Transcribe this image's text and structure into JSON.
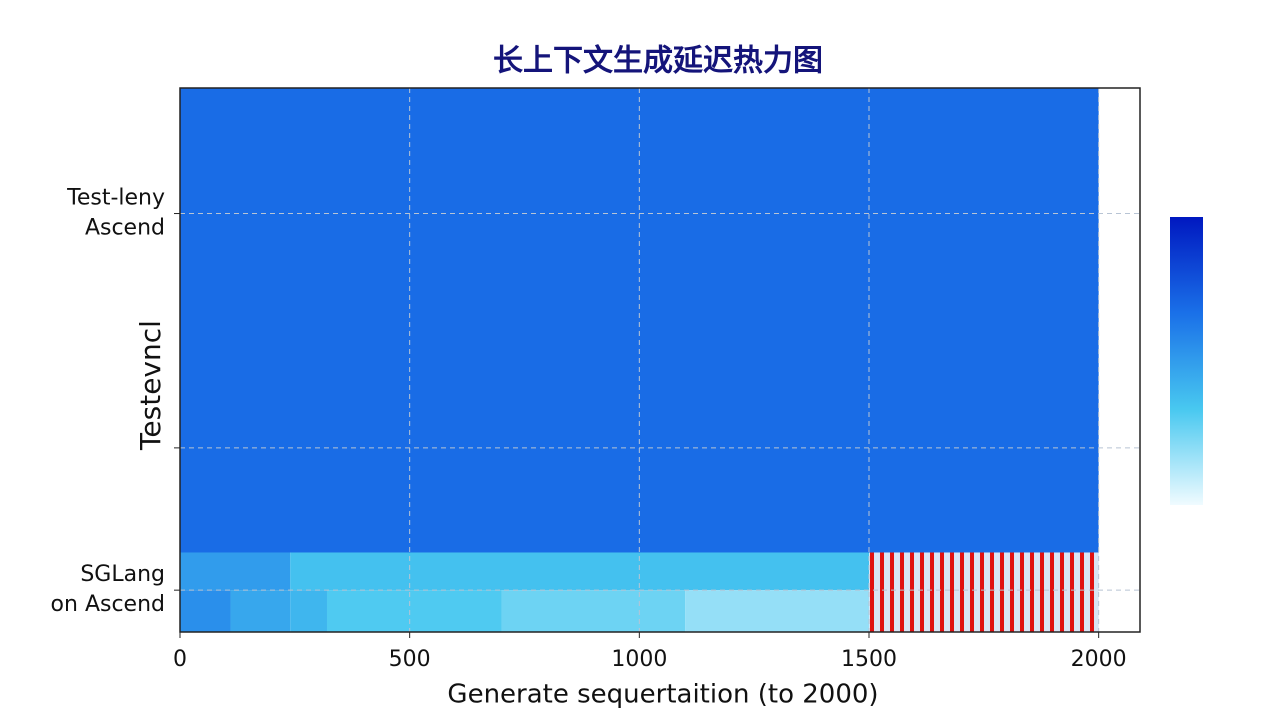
{
  "chart_data": {
    "type": "heatmap",
    "title": "长上下文生成延迟热力图",
    "xlabel": "Generate sequertaition (to 2000)",
    "ylabel": "Testevncl",
    "xlim": [
      0,
      2090
    ],
    "xticks": [
      0,
      500,
      1000,
      1500,
      2000
    ],
    "ylim": [
      0,
      13
    ],
    "yticks": [
      {
        "value": 1,
        "label": "SGLang\non Ascend"
      },
      {
        "value": 4.4,
        "label": null
      },
      {
        "value": 10,
        "label": "Test-leny\nAscend"
      }
    ],
    "grid": true,
    "clim": [
      0,
      1
    ],
    "colorscale": [
      "#f0fbff",
      "#48c8f0",
      "#1a70e8",
      "#0018c0"
    ],
    "cells": [
      {
        "x": [
          0,
          2000
        ],
        "y": [
          1.9,
          13
        ],
        "value": 0.68
      },
      {
        "x": [
          0,
          240
        ],
        "y": [
          1,
          1.9
        ],
        "value": 0.5
      },
      {
        "x": [
          240,
          1500
        ],
        "y": [
          1,
          1.9
        ],
        "value": 0.36
      },
      {
        "x": [
          0,
          110
        ],
        "y": [
          0,
          1
        ],
        "value": 0.55
      },
      {
        "x": [
          110,
          240
        ],
        "y": [
          0,
          1
        ],
        "value": 0.46
      },
      {
        "x": [
          240,
          320
        ],
        "y": [
          0,
          1
        ],
        "value": 0.4
      },
      {
        "x": [
          320,
          700
        ],
        "y": [
          0,
          1
        ],
        "value": 0.32
      },
      {
        "x": [
          700,
          1100
        ],
        "y": [
          0,
          1
        ],
        "value": 0.26
      },
      {
        "x": [
          1100,
          1500
        ],
        "y": [
          0,
          1
        ],
        "value": 0.18
      }
    ],
    "hatch": {
      "x": [
        1500,
        2000
      ],
      "y": [
        0,
        1.9
      ],
      "color": "#e01010"
    }
  }
}
